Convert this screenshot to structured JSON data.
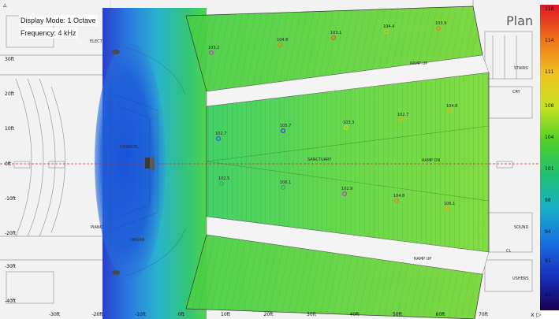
{
  "overlay": {
    "display_mode": "Display Mode: 1 Octave",
    "frequency": "Frequency: 4 kHz",
    "view_name": "Plan",
    "nav_glyph": "▵",
    "corner_controls": "x ▷"
  },
  "plan_labels": {
    "chancel": "CHANCEL",
    "sanctuary": "SANCTUARY",
    "ramp_up": "RAMP UP",
    "ramp_dn": "RAMP DN",
    "elect": "ELECT",
    "sound": "SOUND",
    "ushers": "USHERS",
    "piano": "PIANO",
    "organ": "ORGAN",
    "cry": "CRY",
    "stairs": "STAIRS",
    "cl": "CL"
  },
  "x_axis": [
    "-30ft",
    "-20ft",
    "-10ft",
    "0ft",
    "10ft",
    "20ft",
    "30ft",
    "40ft",
    "50ft",
    "60ft",
    "70ft"
  ],
  "y_axis": [
    "30ft",
    "20ft",
    "10ft",
    "0ft",
    "-10ft",
    "-20ft",
    "-30ft",
    "-40ft"
  ],
  "legend": {
    "ticks": [
      "118",
      "114",
      "111",
      "108",
      "104",
      "101",
      "98",
      "94",
      "91",
      "87"
    ],
    "colors": [
      "#e0142a",
      "#f07018",
      "#f0c020",
      "#c8e020",
      "#50d028",
      "#20c070",
      "#18b0c8",
      "#1870e0",
      "#1830c0",
      "#180050"
    ]
  },
  "measurements": [
    {
      "label": "103.2"
    },
    {
      "label": "104.8"
    },
    {
      "label": "103.1"
    },
    {
      "label": "104.4"
    },
    {
      "label": "103.9"
    },
    {
      "label": "103.3"
    },
    {
      "label": "102.7"
    },
    {
      "label": "104.8"
    },
    {
      "label": "105.7"
    },
    {
      "label": "102.7"
    },
    {
      "label": "102.5"
    },
    {
      "label": "106.1"
    },
    {
      "label": "102.9"
    },
    {
      "label": "104.8"
    },
    {
      "label": "106.1"
    }
  ]
}
